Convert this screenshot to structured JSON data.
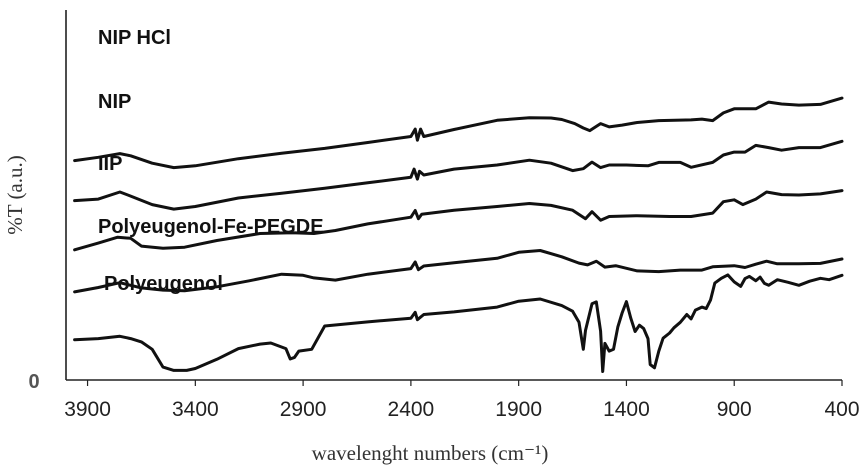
{
  "chart_data": {
    "type": "line",
    "title": "",
    "xlabel": "wavelenght  numbers (cm⁻¹)",
    "ylabel": "%T (a.u.)",
    "xlim": [
      4000,
      400
    ],
    "x_reversed": true,
    "x_ticks": [
      3900,
      3400,
      2900,
      2400,
      1900,
      1400,
      900,
      400
    ],
    "y_tick_label": "0",
    "grid": false,
    "legend": "none",
    "series": [
      {
        "name": "NIP HCl",
        "points": [
          [
            3960,
            59.3
          ],
          [
            3850,
            60.2
          ],
          [
            3750,
            61.2
          ],
          [
            3700,
            60.6
          ],
          [
            3600,
            58.6
          ],
          [
            3500,
            57.4
          ],
          [
            3400,
            57.9
          ],
          [
            3200,
            59.8
          ],
          [
            3000,
            61.3
          ],
          [
            2800,
            62.6
          ],
          [
            2600,
            64.2
          ],
          [
            2400,
            65.8
          ],
          [
            2380,
            67.8
          ],
          [
            2370,
            64.8
          ],
          [
            2355,
            67.8
          ],
          [
            2340,
            65.8
          ],
          [
            2200,
            67.7
          ],
          [
            2000,
            70.2
          ],
          [
            1850,
            70.9
          ],
          [
            1750,
            70.8
          ],
          [
            1700,
            70.4
          ],
          [
            1640,
            69.3
          ],
          [
            1600,
            68.1
          ],
          [
            1570,
            67.4
          ],
          [
            1520,
            69.3
          ],
          [
            1480,
            68.4
          ],
          [
            1420,
            68.9
          ],
          [
            1350,
            69.6
          ],
          [
            1250,
            70.1
          ],
          [
            1100,
            70.3
          ],
          [
            1050,
            70.5
          ],
          [
            1000,
            70.1
          ],
          [
            950,
            72.2
          ],
          [
            900,
            73.3
          ],
          [
            800,
            73.3
          ],
          [
            740,
            75.1
          ],
          [
            680,
            74.6
          ],
          [
            600,
            74.3
          ],
          [
            500,
            74.5
          ],
          [
            400,
            76.2
          ]
        ]
      },
      {
        "name": "NIP",
        "points": [
          [
            3960,
            48.5
          ],
          [
            3850,
            48.9
          ],
          [
            3750,
            50.8
          ],
          [
            3700,
            49.7
          ],
          [
            3600,
            47.4
          ],
          [
            3500,
            46.2
          ],
          [
            3400,
            46.9
          ],
          [
            3200,
            49.2
          ],
          [
            3000,
            50.5
          ],
          [
            2800,
            51.8
          ],
          [
            2600,
            53.3
          ],
          [
            2400,
            54.8
          ],
          [
            2385,
            57.0
          ],
          [
            2370,
            54.3
          ],
          [
            2360,
            56.4
          ],
          [
            2340,
            55.4
          ],
          [
            2200,
            57.0
          ],
          [
            2000,
            58.1
          ],
          [
            1850,
            59.4
          ],
          [
            1750,
            58.6
          ],
          [
            1650,
            56.6
          ],
          [
            1600,
            57.1
          ],
          [
            1560,
            58.9
          ],
          [
            1520,
            57.4
          ],
          [
            1480,
            58.1
          ],
          [
            1400,
            58.1
          ],
          [
            1300,
            57.9
          ],
          [
            1250,
            58.8
          ],
          [
            1150,
            58.8
          ],
          [
            1100,
            57.5
          ],
          [
            1000,
            58.8
          ],
          [
            950,
            60.8
          ],
          [
            900,
            61.6
          ],
          [
            850,
            61.6
          ],
          [
            800,
            63.4
          ],
          [
            740,
            62.8
          ],
          [
            680,
            62.1
          ],
          [
            600,
            62.8
          ],
          [
            500,
            62.8
          ],
          [
            400,
            64.5
          ]
        ]
      },
      {
        "name": "IIP",
        "points": [
          [
            3960,
            35.2
          ],
          [
            3850,
            37.0
          ],
          [
            3760,
            38.6
          ],
          [
            3700,
            38.3
          ],
          [
            3650,
            36.2
          ],
          [
            3550,
            35.6
          ],
          [
            3450,
            35.9
          ],
          [
            3300,
            37.7
          ],
          [
            3100,
            39.6
          ],
          [
            2950,
            39.8
          ],
          [
            2850,
            39.6
          ],
          [
            2750,
            40.4
          ],
          [
            2600,
            42.2
          ],
          [
            2400,
            44.0
          ],
          [
            2380,
            45.8
          ],
          [
            2365,
            43.6
          ],
          [
            2350,
            44.8
          ],
          [
            2200,
            45.9
          ],
          [
            2000,
            46.9
          ],
          [
            1850,
            47.7
          ],
          [
            1750,
            47.2
          ],
          [
            1650,
            45.9
          ],
          [
            1590,
            43.6
          ],
          [
            1560,
            45.5
          ],
          [
            1520,
            43.2
          ],
          [
            1480,
            44.2
          ],
          [
            1350,
            44.4
          ],
          [
            1200,
            44.2
          ],
          [
            1100,
            44.2
          ],
          [
            1000,
            45.1
          ],
          [
            950,
            48.2
          ],
          [
            900,
            48.7
          ],
          [
            860,
            47.4
          ],
          [
            800,
            48.9
          ],
          [
            750,
            50.8
          ],
          [
            680,
            50.1
          ],
          [
            600,
            50.0
          ],
          [
            500,
            50.3
          ],
          [
            400,
            51.2
          ]
        ]
      },
      {
        "name": "Polyeugenol-Fe-PEGDE",
        "points": [
          [
            3960,
            23.8
          ],
          [
            3850,
            25.0
          ],
          [
            3750,
            26.3
          ],
          [
            3650,
            24.9
          ],
          [
            3550,
            24.3
          ],
          [
            3450,
            24.1
          ],
          [
            3300,
            25.2
          ],
          [
            3150,
            26.8
          ],
          [
            3000,
            28.6
          ],
          [
            2900,
            28.3
          ],
          [
            2850,
            27.6
          ],
          [
            2750,
            27.0
          ],
          [
            2600,
            28.6
          ],
          [
            2400,
            30.1
          ],
          [
            2380,
            31.9
          ],
          [
            2365,
            29.8
          ],
          [
            2340,
            30.8
          ],
          [
            2200,
            31.7
          ],
          [
            2000,
            32.9
          ],
          [
            1900,
            34.5
          ],
          [
            1800,
            35.0
          ],
          [
            1700,
            33.3
          ],
          [
            1620,
            31.6
          ],
          [
            1580,
            31.1
          ],
          [
            1540,
            32.1
          ],
          [
            1500,
            30.5
          ],
          [
            1450,
            30.9
          ],
          [
            1350,
            29.5
          ],
          [
            1250,
            29.3
          ],
          [
            1150,
            29.7
          ],
          [
            1050,
            29.7
          ],
          [
            1000,
            30.6
          ],
          [
            900,
            30.9
          ],
          [
            850,
            30.4
          ],
          [
            800,
            31.3
          ],
          [
            750,
            32.1
          ],
          [
            700,
            31.4
          ],
          [
            600,
            31.4
          ],
          [
            500,
            31.5
          ],
          [
            400,
            32.7
          ]
        ]
      },
      {
        "name": "Polyeugenol",
        "points": [
          [
            3960,
            10.9
          ],
          [
            3850,
            11.2
          ],
          [
            3750,
            11.8
          ],
          [
            3700,
            11.2
          ],
          [
            3650,
            10.3
          ],
          [
            3600,
            8.3
          ],
          [
            3550,
            3.5
          ],
          [
            3500,
            2.6
          ],
          [
            3440,
            2.6
          ],
          [
            3400,
            3.1
          ],
          [
            3300,
            5.6
          ],
          [
            3200,
            8.5
          ],
          [
            3100,
            9.7
          ],
          [
            3050,
            10.0
          ],
          [
            2980,
            8.5
          ],
          [
            2960,
            5.7
          ],
          [
            2940,
            6.1
          ],
          [
            2920,
            7.8
          ],
          [
            2860,
            8.3
          ],
          [
            2800,
            14.6
          ],
          [
            2600,
            15.7
          ],
          [
            2400,
            16.7
          ],
          [
            2380,
            18.3
          ],
          [
            2370,
            16.3
          ],
          [
            2340,
            17.7
          ],
          [
            2200,
            18.4
          ],
          [
            2000,
            19.7
          ],
          [
            1900,
            21.3
          ],
          [
            1800,
            21.9
          ],
          [
            1700,
            20.1
          ],
          [
            1650,
            18.6
          ],
          [
            1620,
            15.6
          ],
          [
            1600,
            8.3
          ],
          [
            1590,
            13.4
          ],
          [
            1560,
            20.6
          ],
          [
            1540,
            21.1
          ],
          [
            1520,
            13.2
          ],
          [
            1510,
            2.3
          ],
          [
            1500,
            9.9
          ],
          [
            1480,
            7.8
          ],
          [
            1460,
            8.3
          ],
          [
            1440,
            14.3
          ],
          [
            1420,
            18.1
          ],
          [
            1400,
            21.2
          ],
          [
            1380,
            16.7
          ],
          [
            1360,
            13.1
          ],
          [
            1340,
            14.8
          ],
          [
            1320,
            13.9
          ],
          [
            1300,
            11.2
          ],
          [
            1290,
            4.2
          ],
          [
            1270,
            3.3
          ],
          [
            1250,
            7.8
          ],
          [
            1230,
            11.3
          ],
          [
            1200,
            12.7
          ],
          [
            1180,
            14.1
          ],
          [
            1150,
            15.6
          ],
          [
            1120,
            17.7
          ],
          [
            1100,
            16.5
          ],
          [
            1080,
            18.9
          ],
          [
            1050,
            19.7
          ],
          [
            1030,
            19.3
          ],
          [
            1010,
            21.6
          ],
          [
            990,
            26.2
          ],
          [
            960,
            27.5
          ],
          [
            930,
            28.4
          ],
          [
            900,
            26.5
          ],
          [
            870,
            25.3
          ],
          [
            850,
            27.4
          ],
          [
            830,
            28.0
          ],
          [
            800,
            26.8
          ],
          [
            780,
            27.8
          ],
          [
            760,
            26.1
          ],
          [
            740,
            25.6
          ],
          [
            700,
            27.1
          ],
          [
            650,
            26.4
          ],
          [
            600,
            25.6
          ],
          [
            550,
            26.7
          ],
          [
            500,
            27.5
          ],
          [
            460,
            27.1
          ],
          [
            400,
            28.3
          ]
        ]
      }
    ]
  }
}
